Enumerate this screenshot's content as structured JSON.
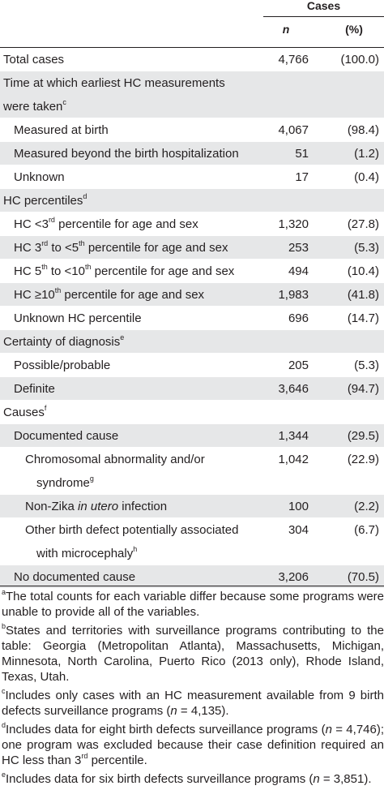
{
  "header": {
    "cases": "Cases",
    "n": "n",
    "pct": "(%)"
  },
  "rows": [
    {
      "label": "Total cases",
      "n": "4,766",
      "pct": "(100.0)"
    },
    {
      "label": "Time at which earliest HC measurements",
      "label2": "were taken",
      "sup": "c"
    },
    {
      "label": "Measured at birth",
      "n": "4,067",
      "pct": "(98.4)"
    },
    {
      "label": "Measured beyond the birth hospitalization",
      "n": "51",
      "pct": "(1.2)"
    },
    {
      "label": "Unknown",
      "n": "17",
      "pct": "(0.4)"
    },
    {
      "label": "HC percentiles",
      "sup": "d"
    },
    {
      "pre": "HC <3",
      "sup": "rd",
      "post": " percentile for age and sex",
      "n": "1,320",
      "pct": "(27.8)"
    },
    {
      "pre": "HC 3",
      "sup": "rd",
      "mid": " to <5",
      "sup2": "th",
      "post": " percentile for age and sex",
      "n": "253",
      "pct": "(5.3)"
    },
    {
      "pre": "HC 5",
      "sup": "th",
      "mid": " to <10",
      "sup2": "th",
      "post": " percentile for age and sex",
      "n": "494",
      "pct": "(10.4)"
    },
    {
      "pre": "HC ≥10",
      "sup": "th",
      "post": " percentile for age and sex",
      "n": "1,983",
      "pct": "(41.8)"
    },
    {
      "label": "Unknown HC percentile",
      "n": "696",
      "pct": "(14.7)"
    },
    {
      "label": "Certainty of diagnosis",
      "sup": "e"
    },
    {
      "label": "Possible/probable",
      "n": "205",
      "pct": "(5.3)"
    },
    {
      "label": "Definite",
      "n": "3,646",
      "pct": "(94.7)"
    },
    {
      "label": "Causes",
      "sup": "f"
    },
    {
      "label": "Documented cause",
      "n": "1,344",
      "pct": "(29.5)"
    },
    {
      "label": "Chromosomal abnormality and/or",
      "label2": "syndrome",
      "sup": "g",
      "n": "1,042",
      "pct": "(22.9)"
    },
    {
      "pre": "Non-Zika ",
      "italic": "in utero",
      "post": " infection",
      "n": "100",
      "pct": "(2.2)"
    },
    {
      "label": "Other birth defect potentially associated",
      "label2": "with microcephaly",
      "sup": "h",
      "n": "304",
      "pct": "(6.7)"
    },
    {
      "label": "No documented cause",
      "n": "3,206",
      "pct": "(70.5)"
    }
  ],
  "footnotes": {
    "a": {
      "mark": "a",
      "text": "The total counts for each variable differ because some programs were unable to provide all of the variables."
    },
    "b": {
      "mark": "b",
      "text": "States and territories with surveillance programs contributing to the table: Georgia (Metropolitan Atlanta), Massachusetts, Michigan, Minnesota, North Carolina, Puerto Rico (2013 only), Rhode Island, Texas, Utah."
    },
    "c": {
      "mark": "c",
      "pre": "Includes only cases with an HC measurement available from 9 birth defects surveillance programs (",
      "var": "n",
      "post": " = 4,135)."
    },
    "d": {
      "mark": "d",
      "pre": "Includes data for eight birth defects surveillance programs (",
      "var": "n",
      "mid": " = 4,746); one program was excluded because their case definition required an HC less than 3",
      "sup": "rd",
      "post": " percentile."
    },
    "e": {
      "mark": "e",
      "pre": "Includes data for six birth defects surveillance programs (",
      "var": "n",
      "post": " = 3,851)."
    }
  }
}
